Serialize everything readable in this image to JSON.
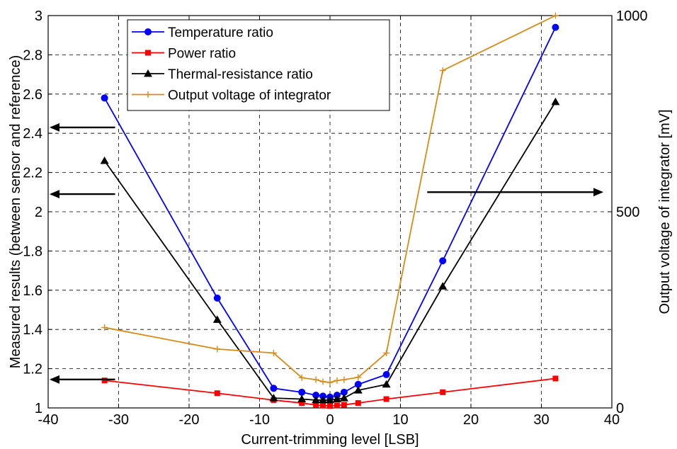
{
  "chart_data": {
    "type": "line",
    "xlabel": "Current-trimming level [LSB]",
    "ylabel": "Measured results (between sensor and reference)",
    "ylabel_right": "Output voltage of integrator [mV]",
    "xlim": [
      -40,
      40
    ],
    "ylim": [
      1,
      3
    ],
    "ylim_right": [
      0,
      1000
    ],
    "x_ticks": [
      "-40",
      "-30",
      "-20",
      "-10",
      "0",
      "10",
      "20",
      "30",
      "40"
    ],
    "y_ticks": [
      "1",
      "1.2",
      "1.4",
      "1.6",
      "1.8",
      "2",
      "2.2",
      "2.4",
      "2.6",
      "2.8",
      "3"
    ],
    "y_right_ticks": [
      "0",
      "500",
      "1000"
    ],
    "grid": true,
    "legend_position": "top-left",
    "series": [
      {
        "name": "Temperature ratio",
        "color": "#0000ff",
        "marker": "circle",
        "axis": "left",
        "x": [
          -32,
          -16,
          -8,
          -4,
          -2,
          -1,
          0,
          1,
          2,
          4,
          8,
          16,
          32
        ],
        "y": [
          2.58,
          1.56,
          1.1,
          1.08,
          1.065,
          1.06,
          1.055,
          1.065,
          1.08,
          1.12,
          1.17,
          1.75,
          2.94
        ]
      },
      {
        "name": "Power ratio",
        "color": "#ff0000",
        "marker": "square",
        "axis": "left",
        "x": [
          -32,
          -16,
          -8,
          -4,
          -2,
          -1,
          0,
          1,
          2,
          4,
          8,
          16,
          32
        ],
        "y": [
          1.14,
          1.075,
          1.04,
          1.025,
          1.015,
          1.012,
          1.01,
          1.013,
          1.016,
          1.025,
          1.045,
          1.08,
          1.15
        ]
      },
      {
        "name": "Thermal-resistance ratio",
        "color": "#000000",
        "marker": "triangle",
        "axis": "left",
        "x": [
          -32,
          -16,
          -8,
          -4,
          -2,
          -1,
          0,
          1,
          2,
          4,
          8,
          16,
          32
        ],
        "y": [
          2.26,
          1.45,
          1.05,
          1.045,
          1.04,
          1.04,
          1.04,
          1.045,
          1.05,
          1.09,
          1.12,
          1.62,
          2.56
        ]
      },
      {
        "name": "Output voltage of integrator",
        "color": "#d98a16",
        "marker": "plus",
        "axis": "right",
        "x": [
          -32,
          -16,
          -8,
          -4,
          -2,
          -1,
          0,
          1,
          2,
          4,
          8,
          16,
          32
        ],
        "y": [
          205,
          150,
          140,
          77,
          72,
          67,
          65,
          70,
          72,
          78,
          140,
          860,
          1000
        ]
      }
    ],
    "arrows": [
      {
        "from_x": -30.5,
        "to_x": -40,
        "y": 2.43,
        "direction": "left"
      },
      {
        "from_x": -30.5,
        "to_x": -40,
        "y": 2.09,
        "direction": "left"
      },
      {
        "from_x": -30.5,
        "to_x": -40,
        "y": 1.145,
        "direction": "left"
      },
      {
        "from_x": 13.8,
        "to_x": 40,
        "y": 2.1,
        "direction": "right"
      }
    ]
  }
}
